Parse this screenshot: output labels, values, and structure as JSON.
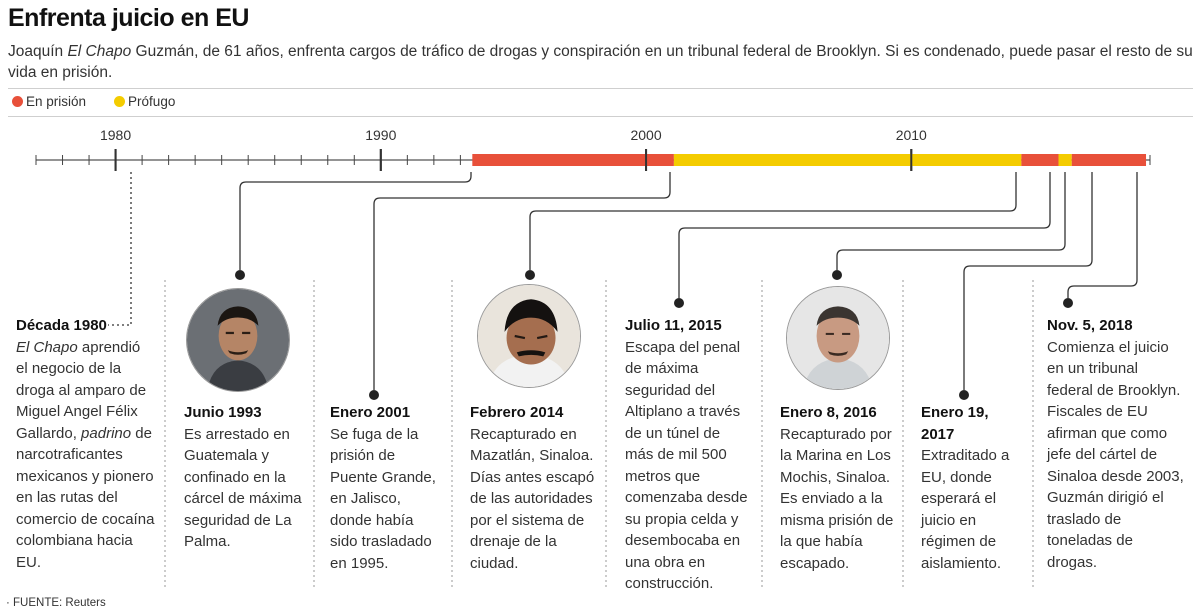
{
  "header": {
    "title": "Enfrenta juicio en EU",
    "subtitle_pre": "Joaquín ",
    "subtitle_em": "El Chapo",
    "subtitle_post": " Guzmán, de 61 años, enfrenta cargos de tráfico de drogas y conspiración en un tribunal federal de Brooklyn. Si es condenado, puede pasar el resto de su vida en prisión."
  },
  "legend": {
    "prison_label": "En prisión",
    "fugitive_label": "Prófugo",
    "prison_color": "#e8503a",
    "fugitive_color": "#f4cc00"
  },
  "timeline": {
    "year_labels": [
      "1980",
      "1990",
      "2000",
      "2010"
    ],
    "start_year": 1977,
    "end_year": 2019,
    "periods": [
      {
        "status": "prison",
        "from": 1993.45,
        "to": 2001.05
      },
      {
        "status": "fugitive",
        "from": 2001.05,
        "to": 2014.15
      },
      {
        "status": "prison",
        "from": 2014.15,
        "to": 2015.55
      },
      {
        "status": "fugitive",
        "from": 2015.55,
        "to": 2016.05
      },
      {
        "status": "prison",
        "from": 2016.05,
        "to": 2018.85
      }
    ]
  },
  "events": [
    {
      "date": "Década 1980",
      "text_parts": [
        {
          "t": "El Chapo",
          "em": true
        },
        {
          "t": " aprendió el negocio de la droga al amparo de Miguel Angel Félix Gallardo, ",
          "em": false
        },
        {
          "t": "padrino",
          "em": true
        },
        {
          "t": " de narcotraficantes mexicanos y pionero en las rutas del comercio de cocaína colombiana hacia EU.",
          "em": false
        }
      ]
    },
    {
      "date": "Junio 1993",
      "text": "Es arrestado en Guatemala y confinado en la cárcel de máxima seguridad de La Palma."
    },
    {
      "date": "Enero 2001",
      "text": "Se fuga de la prisión de Puente Grande, en Jalisco, donde había sido trasladado en 1995."
    },
    {
      "date": "Febrero 2014",
      "text": "Recapturado en Mazatlán, Sinaloa. Días antes escapó de las autoridades por el sistema de drenaje de la ciudad."
    },
    {
      "date": "Julio 11, 2015",
      "text": "Escapa del penal de máxima seguridad del Altiplano a través de un túnel de más de mil 500 metros que comenzaba desde su propia celda y desembocaba en una obra en construcción."
    },
    {
      "date": "Enero 8, 2016",
      "text": "Recapturado por la Marina en Los Mochis, Sinaloa. Es enviado a la misma prisión de la que había escapado."
    },
    {
      "date": "Enero 19, 2017",
      "text": "Extraditado a EU, donde esperará el juicio en régimen de aislamiento."
    },
    {
      "date": "Nov. 5, 2018",
      "text": "Comienza el juicio en un tribunal federal de Brooklyn. Fiscales de EU afirman que como jefe del cártel de Sinaloa desde 2003, Guzmán dirigió el traslado de toneladas de drogas."
    }
  ],
  "photos": [
    "portrait-1993-icon",
    "portrait-2014-icon",
    "portrait-2016-icon"
  ],
  "source": "FUENTE: Reuters"
}
